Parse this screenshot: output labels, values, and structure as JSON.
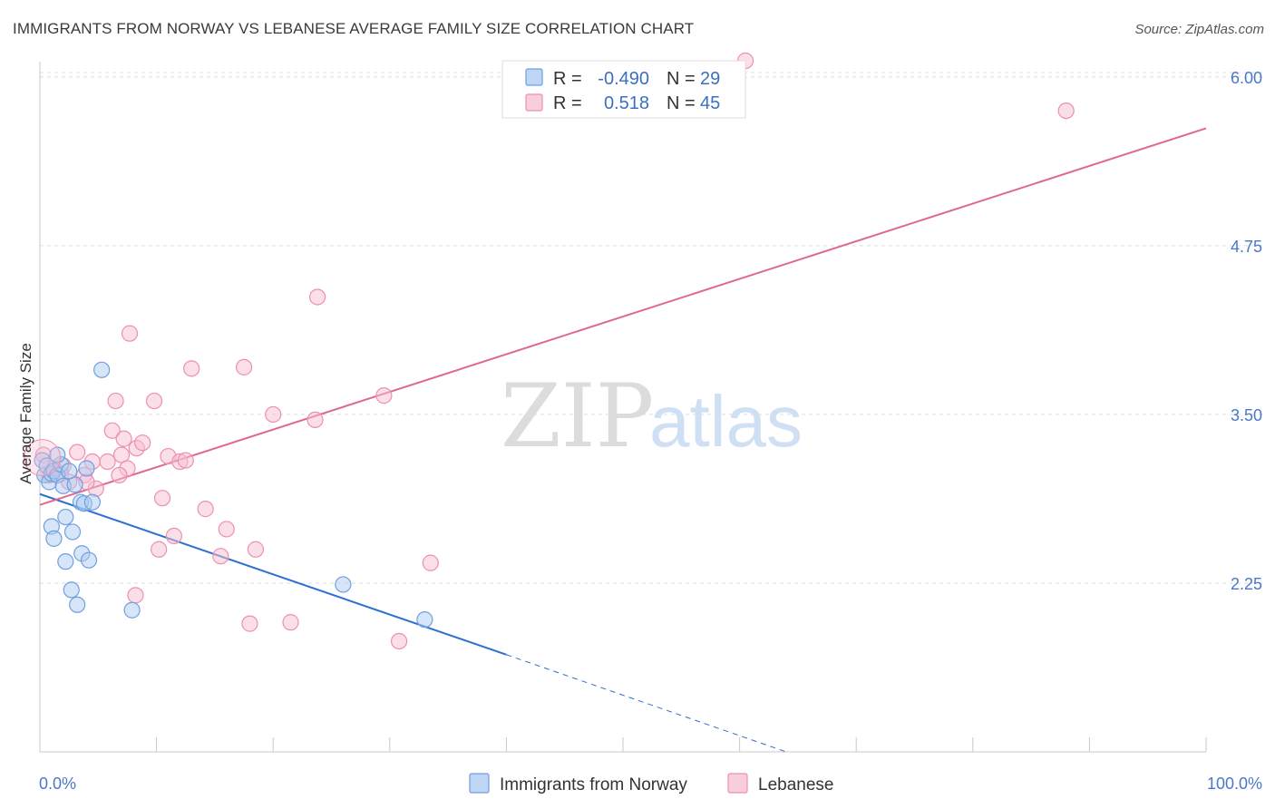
{
  "title": "IMMIGRANTS FROM NORWAY VS LEBANESE AVERAGE FAMILY SIZE CORRELATION CHART",
  "source": "Source: ZipAtlas.com",
  "watermark": {
    "zip": "ZIP",
    "atlas": "atlas"
  },
  "colors": {
    "norway": "#6f9fe0",
    "norway_fill": "#aecbf0",
    "norway_line": "#2f6fd0",
    "lebanese": "#ee8fb0",
    "lebanese_fill": "#f6c0d4",
    "lebanese_line": "#e06890",
    "grid": "#dddddd",
    "tick": "#4a78c8"
  },
  "legend": {
    "rows": [
      {
        "r_label": "R =",
        "r_value": "-0.490",
        "n_label": "N =",
        "n_value": "29"
      },
      {
        "r_label": "R =",
        "r_value": "0.518",
        "n_label": "N =",
        "n_value": "45"
      }
    ]
  },
  "chart_data": {
    "type": "scatter",
    "xlabel": "",
    "ylabel": "Average Family Size",
    "x_tick_labels": [
      "0.0%",
      "100.0%"
    ],
    "xlim": [
      0,
      100
    ],
    "ylim": [
      1.0,
      6.1
    ],
    "yticks": [
      2.25,
      3.5,
      4.75,
      6.0
    ],
    "ytick_labels": [
      "2.25",
      "3.50",
      "4.75",
      "6.00"
    ],
    "grid": true,
    "legend_position": "bottom",
    "series": [
      {
        "name": "Immigrants from Norway",
        "points": [
          [
            0.2,
            3.16
          ],
          [
            0.4,
            3.05
          ],
          [
            0.6,
            3.12
          ],
          [
            0.8,
            3.0
          ],
          [
            1.0,
            3.06
          ],
          [
            1.2,
            3.08
          ],
          [
            1.5,
            3.05
          ],
          [
            1.8,
            3.13
          ],
          [
            2.0,
            2.97
          ],
          [
            1.0,
            2.67
          ],
          [
            1.2,
            2.58
          ],
          [
            2.2,
            2.74
          ],
          [
            3.0,
            2.98
          ],
          [
            3.5,
            2.85
          ],
          [
            2.5,
            3.08
          ],
          [
            2.8,
            2.63
          ],
          [
            4.0,
            3.1
          ],
          [
            3.6,
            2.47
          ],
          [
            4.2,
            2.42
          ],
          [
            2.2,
            2.41
          ],
          [
            2.7,
            2.2
          ],
          [
            3.2,
            2.09
          ],
          [
            5.3,
            3.83
          ],
          [
            7.9,
            2.05
          ],
          [
            3.8,
            2.84
          ],
          [
            4.5,
            2.85
          ],
          [
            26.0,
            2.24
          ],
          [
            33.0,
            1.98
          ],
          [
            1.5,
            3.2
          ]
        ],
        "trend": {
          "x0": 0,
          "y0": 2.91,
          "x1": 40,
          "y1": 1.72,
          "dash_to_x": 64,
          "dash_to_y": 1.0
        }
      },
      {
        "name": "Lebanese",
        "points": [
          [
            0.3,
            3.2
          ],
          [
            0.8,
            3.05
          ],
          [
            1.2,
            3.1
          ],
          [
            1.8,
            3.06
          ],
          [
            2.5,
            3.0
          ],
          [
            3.2,
            3.22
          ],
          [
            3.8,
            3.05
          ],
          [
            4.5,
            3.15
          ],
          [
            4.8,
            2.95
          ],
          [
            5.8,
            3.15
          ],
          [
            6.2,
            3.38
          ],
          [
            6.5,
            3.6
          ],
          [
            7.0,
            3.2
          ],
          [
            7.2,
            3.32
          ],
          [
            7.5,
            3.1
          ],
          [
            7.7,
            4.1
          ],
          [
            8.3,
            3.25
          ],
          [
            8.8,
            3.29
          ],
          [
            9.8,
            3.6
          ],
          [
            10.5,
            2.88
          ],
          [
            11.0,
            3.19
          ],
          [
            11.5,
            2.6
          ],
          [
            12.0,
            3.15
          ],
          [
            12.5,
            3.16
          ],
          [
            13.0,
            3.84
          ],
          [
            14.2,
            2.8
          ],
          [
            15.5,
            2.45
          ],
          [
            16.0,
            2.65
          ],
          [
            17.5,
            3.85
          ],
          [
            18.0,
            1.95
          ],
          [
            18.5,
            2.5
          ],
          [
            20.0,
            3.5
          ],
          [
            21.5,
            1.96
          ],
          [
            23.8,
            4.37
          ],
          [
            23.6,
            3.46
          ],
          [
            10.2,
            2.5
          ],
          [
            8.2,
            2.16
          ],
          [
            29.5,
            3.64
          ],
          [
            30.8,
            1.82
          ],
          [
            33.5,
            2.4
          ],
          [
            60.5,
            6.12
          ],
          [
            88.0,
            5.75
          ],
          [
            4.0,
            3.0
          ],
          [
            2.0,
            3.12
          ],
          [
            6.8,
            3.05
          ]
        ],
        "trend": {
          "x0": 0,
          "y0": 2.83,
          "x1": 100,
          "y1": 5.62
        }
      }
    ]
  }
}
